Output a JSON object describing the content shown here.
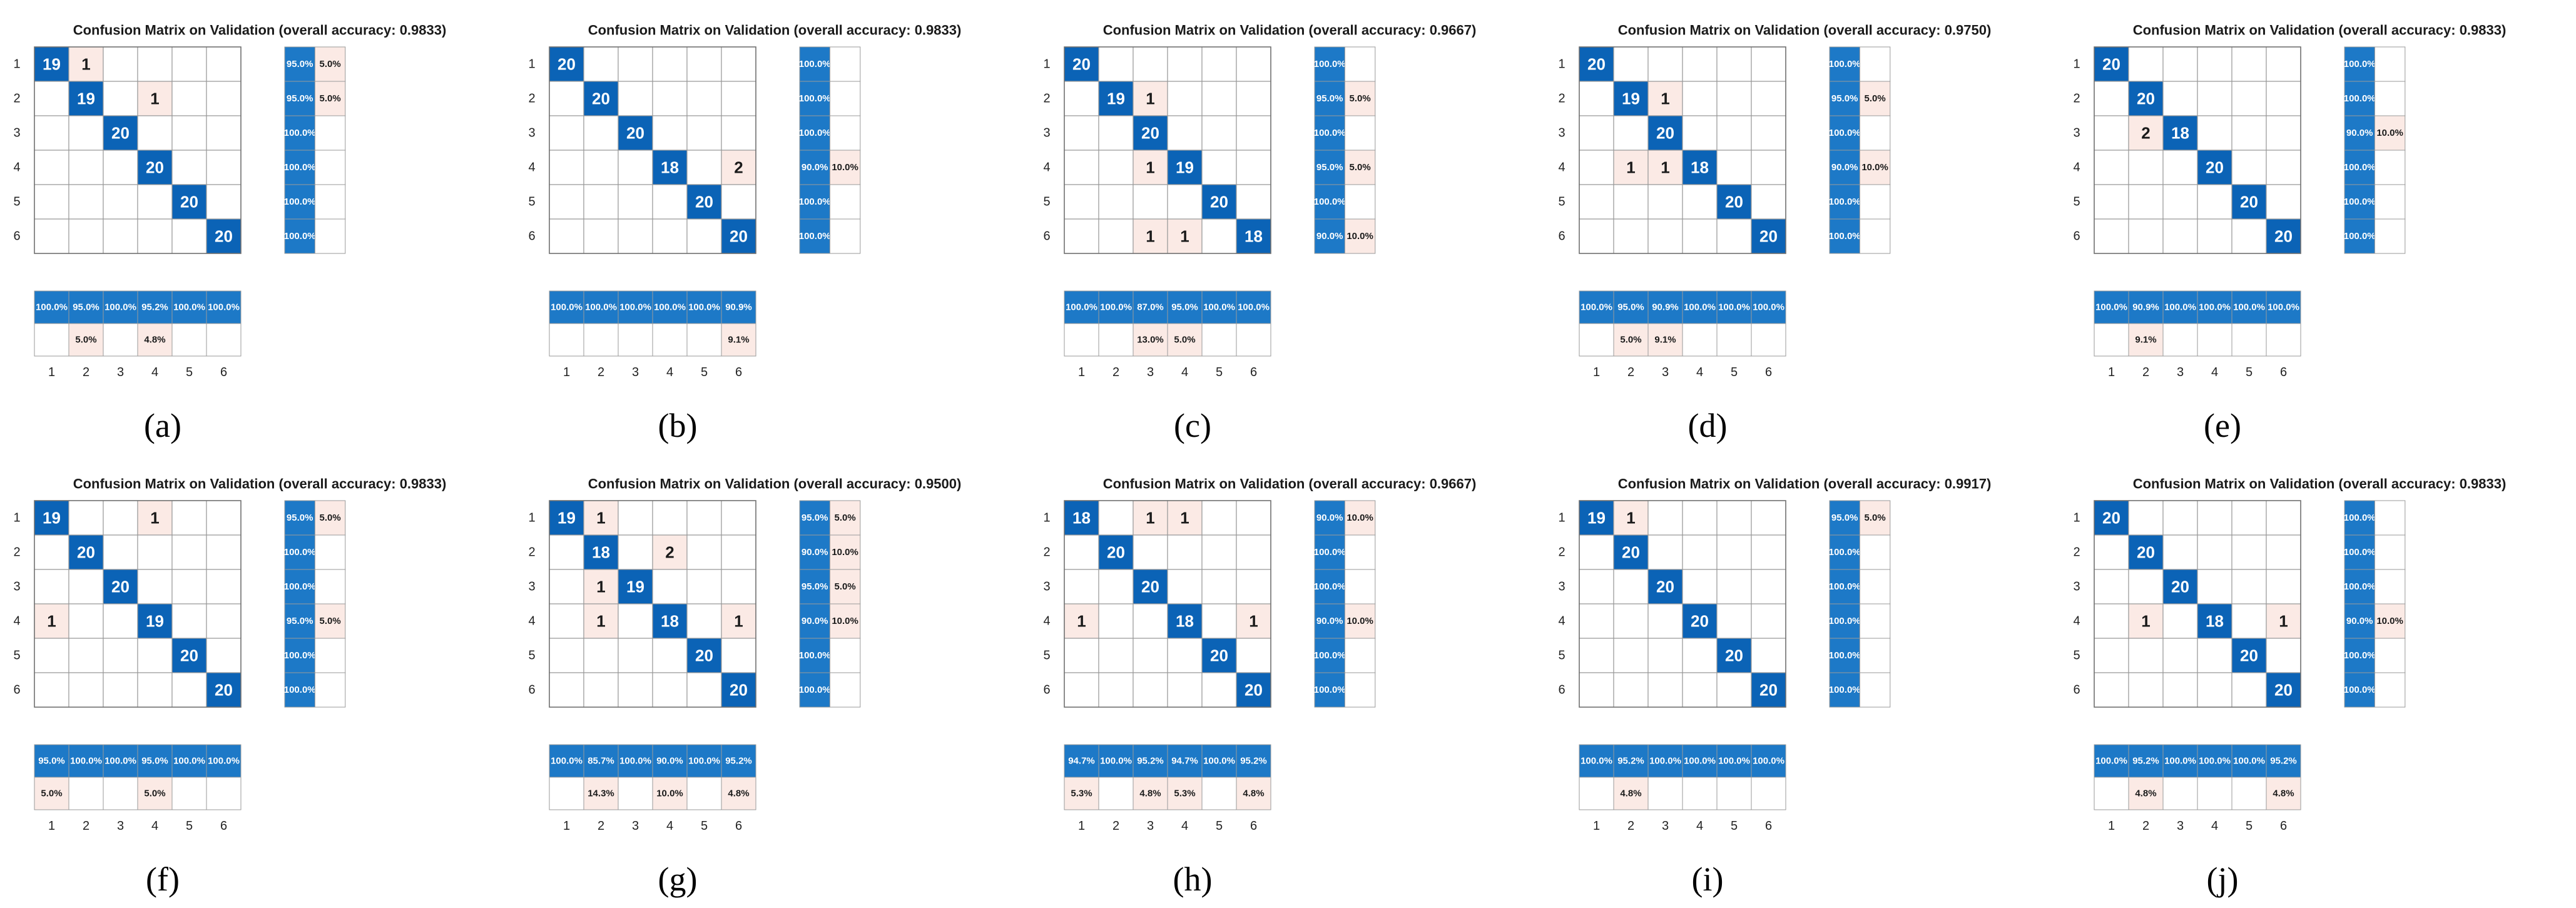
{
  "colors": {
    "correct": "#0b63b6",
    "correct_light": "#1d79c7",
    "error": "#fbeae5",
    "grid": "#9a9a9a",
    "text_on_correct": "#ffffff",
    "text_on_error": "#1a1a1a"
  },
  "chart_data": [
    {
      "type": "heatmap",
      "panel_label": "(a)",
      "title": "Confusion Matrix on Validation (overall accuracy: 0.9833)",
      "classes": [
        "1",
        "2",
        "3",
        "4",
        "5",
        "6"
      ],
      "matrix": [
        [
          19,
          1,
          0,
          0,
          0,
          0
        ],
        [
          0,
          19,
          0,
          1,
          0,
          0
        ],
        [
          0,
          0,
          20,
          0,
          0,
          0
        ],
        [
          0,
          0,
          0,
          20,
          0,
          0
        ],
        [
          0,
          0,
          0,
          0,
          20,
          0
        ],
        [
          0,
          0,
          0,
          0,
          0,
          20
        ]
      ],
      "row_summary": [
        [
          "95.0%",
          "5.0%"
        ],
        [
          "95.0%",
          "5.0%"
        ],
        [
          "100.0%",
          ""
        ],
        [
          "100.0%",
          ""
        ],
        [
          "100.0%",
          ""
        ],
        [
          "100.0%",
          ""
        ]
      ],
      "column_summary": [
        [
          "100.0%",
          ""
        ],
        [
          "95.0%",
          "5.0%"
        ],
        [
          "100.0%",
          ""
        ],
        [
          "95.2%",
          "4.8%"
        ],
        [
          "100.0%",
          ""
        ],
        [
          "100.0%",
          ""
        ]
      ]
    },
    {
      "type": "heatmap",
      "panel_label": "(b)",
      "title": "Confusion Matrix on Validation (overall accuracy: 0.9833)",
      "classes": [
        "1",
        "2",
        "3",
        "4",
        "5",
        "6"
      ],
      "matrix": [
        [
          20,
          0,
          0,
          0,
          0,
          0
        ],
        [
          0,
          20,
          0,
          0,
          0,
          0
        ],
        [
          0,
          0,
          20,
          0,
          0,
          0
        ],
        [
          0,
          0,
          0,
          18,
          0,
          2
        ],
        [
          0,
          0,
          0,
          0,
          20,
          0
        ],
        [
          0,
          0,
          0,
          0,
          0,
          20
        ]
      ],
      "row_summary": [
        [
          "100.0%",
          ""
        ],
        [
          "100.0%",
          ""
        ],
        [
          "100.0%",
          ""
        ],
        [
          "90.0%",
          "10.0%"
        ],
        [
          "100.0%",
          ""
        ],
        [
          "100.0%",
          ""
        ]
      ],
      "column_summary": [
        [
          "100.0%",
          ""
        ],
        [
          "100.0%",
          ""
        ],
        [
          "100.0%",
          ""
        ],
        [
          "100.0%",
          ""
        ],
        [
          "100.0%",
          ""
        ],
        [
          "90.9%",
          "9.1%"
        ]
      ]
    },
    {
      "type": "heatmap",
      "panel_label": "(c)",
      "title": "Confusion Matrix on Validation (overall accuracy: 0.9667)",
      "classes": [
        "1",
        "2",
        "3",
        "4",
        "5",
        "6"
      ],
      "matrix": [
        [
          20,
          0,
          0,
          0,
          0,
          0
        ],
        [
          0,
          19,
          1,
          0,
          0,
          0
        ],
        [
          0,
          0,
          20,
          0,
          0,
          0
        ],
        [
          0,
          0,
          1,
          19,
          0,
          0
        ],
        [
          0,
          0,
          0,
          0,
          20,
          0
        ],
        [
          0,
          0,
          1,
          1,
          0,
          18
        ]
      ],
      "row_summary": [
        [
          "100.0%",
          ""
        ],
        [
          "95.0%",
          "5.0%"
        ],
        [
          "100.0%",
          ""
        ],
        [
          "95.0%",
          "5.0%"
        ],
        [
          "100.0%",
          ""
        ],
        [
          "90.0%",
          "10.0%"
        ]
      ],
      "column_summary": [
        [
          "100.0%",
          ""
        ],
        [
          "100.0%",
          ""
        ],
        [
          "87.0%",
          "13.0%"
        ],
        [
          "95.0%",
          "5.0%"
        ],
        [
          "100.0%",
          ""
        ],
        [
          "100.0%",
          ""
        ]
      ]
    },
    {
      "type": "heatmap",
      "panel_label": "(d)",
      "title": "Confusion Matrix on Validation (overall accuracy: 0.9750)",
      "classes": [
        "1",
        "2",
        "3",
        "4",
        "5",
        "6"
      ],
      "matrix": [
        [
          20,
          0,
          0,
          0,
          0,
          0
        ],
        [
          0,
          19,
          1,
          0,
          0,
          0
        ],
        [
          0,
          0,
          20,
          0,
          0,
          0
        ],
        [
          0,
          1,
          1,
          18,
          0,
          0
        ],
        [
          0,
          0,
          0,
          0,
          20,
          0
        ],
        [
          0,
          0,
          0,
          0,
          0,
          20
        ]
      ],
      "row_summary": [
        [
          "100.0%",
          ""
        ],
        [
          "95.0%",
          "5.0%"
        ],
        [
          "100.0%",
          ""
        ],
        [
          "90.0%",
          "10.0%"
        ],
        [
          "100.0%",
          ""
        ],
        [
          "100.0%",
          ""
        ]
      ],
      "column_summary": [
        [
          "100.0%",
          ""
        ],
        [
          "95.0%",
          "5.0%"
        ],
        [
          "90.9%",
          "9.1%"
        ],
        [
          "100.0%",
          ""
        ],
        [
          "100.0%",
          ""
        ],
        [
          "100.0%",
          ""
        ]
      ]
    },
    {
      "type": "heatmap",
      "panel_label": "(e)",
      "title": "Confusion Matrix on Validation (overall accuracy: 0.9833)",
      "classes": [
        "1",
        "2",
        "3",
        "4",
        "5",
        "6"
      ],
      "matrix": [
        [
          20,
          0,
          0,
          0,
          0,
          0
        ],
        [
          0,
          20,
          0,
          0,
          0,
          0
        ],
        [
          0,
          2,
          18,
          0,
          0,
          0
        ],
        [
          0,
          0,
          0,
          20,
          0,
          0
        ],
        [
          0,
          0,
          0,
          0,
          20,
          0
        ],
        [
          0,
          0,
          0,
          0,
          0,
          20
        ]
      ],
      "row_summary": [
        [
          "100.0%",
          ""
        ],
        [
          "100.0%",
          ""
        ],
        [
          "90.0%",
          "10.0%"
        ],
        [
          "100.0%",
          ""
        ],
        [
          "100.0%",
          ""
        ],
        [
          "100.0%",
          ""
        ]
      ],
      "column_summary": [
        [
          "100.0%",
          ""
        ],
        [
          "90.9%",
          "9.1%"
        ],
        [
          "100.0%",
          ""
        ],
        [
          "100.0%",
          ""
        ],
        [
          "100.0%",
          ""
        ],
        [
          "100.0%",
          ""
        ]
      ]
    },
    {
      "type": "heatmap",
      "panel_label": "(f)",
      "title": "Confusion Matrix on Validation (overall accuracy: 0.9833)",
      "classes": [
        "1",
        "2",
        "3",
        "4",
        "5",
        "6"
      ],
      "matrix": [
        [
          19,
          0,
          0,
          1,
          0,
          0
        ],
        [
          0,
          20,
          0,
          0,
          0,
          0
        ],
        [
          0,
          0,
          20,
          0,
          0,
          0
        ],
        [
          1,
          0,
          0,
          19,
          0,
          0
        ],
        [
          0,
          0,
          0,
          0,
          20,
          0
        ],
        [
          0,
          0,
          0,
          0,
          0,
          20
        ]
      ],
      "row_summary": [
        [
          "95.0%",
          "5.0%"
        ],
        [
          "100.0%",
          ""
        ],
        [
          "100.0%",
          ""
        ],
        [
          "95.0%",
          "5.0%"
        ],
        [
          "100.0%",
          ""
        ],
        [
          "100.0%",
          ""
        ]
      ],
      "column_summary": [
        [
          "95.0%",
          "5.0%"
        ],
        [
          "100.0%",
          ""
        ],
        [
          "100.0%",
          ""
        ],
        [
          "95.0%",
          "5.0%"
        ],
        [
          "100.0%",
          ""
        ],
        [
          "100.0%",
          ""
        ]
      ]
    },
    {
      "type": "heatmap",
      "panel_label": "(g)",
      "title": "Confusion Matrix on Validation (overall accuracy: 0.9500)",
      "classes": [
        "1",
        "2",
        "3",
        "4",
        "5",
        "6"
      ],
      "matrix": [
        [
          19,
          1,
          0,
          0,
          0,
          0
        ],
        [
          0,
          18,
          0,
          2,
          0,
          0
        ],
        [
          0,
          1,
          19,
          0,
          0,
          0
        ],
        [
          0,
          1,
          0,
          18,
          0,
          1
        ],
        [
          0,
          0,
          0,
          0,
          20,
          0
        ],
        [
          0,
          0,
          0,
          0,
          0,
          20
        ]
      ],
      "row_summary": [
        [
          "95.0%",
          "5.0%"
        ],
        [
          "90.0%",
          "10.0%"
        ],
        [
          "95.0%",
          "5.0%"
        ],
        [
          "90.0%",
          "10.0%"
        ],
        [
          "100.0%",
          ""
        ],
        [
          "100.0%",
          ""
        ]
      ],
      "column_summary": [
        [
          "100.0%",
          ""
        ],
        [
          "85.7%",
          "14.3%"
        ],
        [
          "100.0%",
          ""
        ],
        [
          "90.0%",
          "10.0%"
        ],
        [
          "100.0%",
          ""
        ],
        [
          "95.2%",
          "4.8%"
        ]
      ]
    },
    {
      "type": "heatmap",
      "panel_label": "(h)",
      "title": "Confusion Matrix on Validation (overall accuracy: 0.9667)",
      "classes": [
        "1",
        "2",
        "3",
        "4",
        "5",
        "6"
      ],
      "matrix": [
        [
          18,
          0,
          1,
          1,
          0,
          0
        ],
        [
          0,
          20,
          0,
          0,
          0,
          0
        ],
        [
          0,
          0,
          20,
          0,
          0,
          0
        ],
        [
          1,
          0,
          0,
          18,
          0,
          1
        ],
        [
          0,
          0,
          0,
          0,
          20,
          0
        ],
        [
          0,
          0,
          0,
          0,
          0,
          20
        ]
      ],
      "row_summary": [
        [
          "90.0%",
          "10.0%"
        ],
        [
          "100.0%",
          ""
        ],
        [
          "100.0%",
          ""
        ],
        [
          "90.0%",
          "10.0%"
        ],
        [
          "100.0%",
          ""
        ],
        [
          "100.0%",
          ""
        ]
      ],
      "column_summary": [
        [
          "94.7%",
          "5.3%"
        ],
        [
          "100.0%",
          ""
        ],
        [
          "95.2%",
          "4.8%"
        ],
        [
          "94.7%",
          "5.3%"
        ],
        [
          "100.0%",
          ""
        ],
        [
          "95.2%",
          "4.8%"
        ]
      ]
    },
    {
      "type": "heatmap",
      "panel_label": "(i)",
      "title": "Confusion Matrix on Validation (overall accuracy: 0.9917)",
      "classes": [
        "1",
        "2",
        "3",
        "4",
        "5",
        "6"
      ],
      "matrix": [
        [
          19,
          1,
          0,
          0,
          0,
          0
        ],
        [
          0,
          20,
          0,
          0,
          0,
          0
        ],
        [
          0,
          0,
          20,
          0,
          0,
          0
        ],
        [
          0,
          0,
          0,
          20,
          0,
          0
        ],
        [
          0,
          0,
          0,
          0,
          20,
          0
        ],
        [
          0,
          0,
          0,
          0,
          0,
          20
        ]
      ],
      "row_summary": [
        [
          "95.0%",
          "5.0%"
        ],
        [
          "100.0%",
          ""
        ],
        [
          "100.0%",
          ""
        ],
        [
          "100.0%",
          ""
        ],
        [
          "100.0%",
          ""
        ],
        [
          "100.0%",
          ""
        ]
      ],
      "column_summary": [
        [
          "100.0%",
          ""
        ],
        [
          "95.2%",
          "4.8%"
        ],
        [
          "100.0%",
          ""
        ],
        [
          "100.0%",
          ""
        ],
        [
          "100.0%",
          ""
        ],
        [
          "100.0%",
          ""
        ]
      ]
    },
    {
      "type": "heatmap",
      "panel_label": "(j)",
      "title": "Confusion Matrix on Validation (overall accuracy: 0.9833)",
      "classes": [
        "1",
        "2",
        "3",
        "4",
        "5",
        "6"
      ],
      "matrix": [
        [
          20,
          0,
          0,
          0,
          0,
          0
        ],
        [
          0,
          20,
          0,
          0,
          0,
          0
        ],
        [
          0,
          0,
          20,
          0,
          0,
          0
        ],
        [
          0,
          1,
          0,
          18,
          0,
          1
        ],
        [
          0,
          0,
          0,
          0,
          20,
          0
        ],
        [
          0,
          0,
          0,
          0,
          0,
          20
        ]
      ],
      "row_summary": [
        [
          "100.0%",
          ""
        ],
        [
          "100.0%",
          ""
        ],
        [
          "100.0%",
          ""
        ],
        [
          "90.0%",
          "10.0%"
        ],
        [
          "100.0%",
          ""
        ],
        [
          "100.0%",
          ""
        ]
      ],
      "column_summary": [
        [
          "100.0%",
          ""
        ],
        [
          "95.2%",
          "4.8%"
        ],
        [
          "100.0%",
          ""
        ],
        [
          "100.0%",
          ""
        ],
        [
          "100.0%",
          ""
        ],
        [
          "95.2%",
          "4.8%"
        ]
      ]
    }
  ]
}
